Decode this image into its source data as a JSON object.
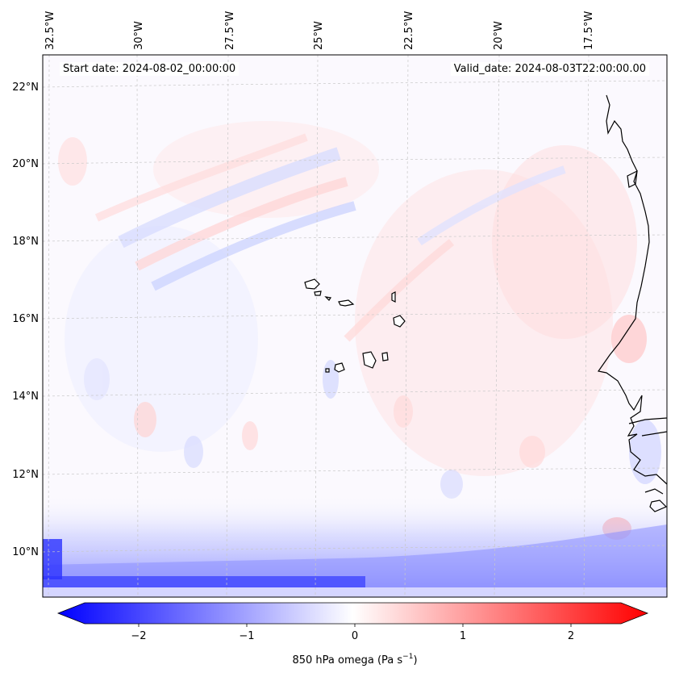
{
  "header": {
    "start_label": "Start date: 2024-08-02_00:00:00",
    "valid_label": "Valid_date: 2024-08-03T22:00:00.00"
  },
  "axes": {
    "lon_ticks": [
      "32.5°W",
      "30°W",
      "27.5°W",
      "25°W",
      "22.5°W",
      "20°W",
      "17.5°W"
    ],
    "lat_ticks": [
      "22°N",
      "20°N",
      "18°N",
      "16°N",
      "14°N",
      "12°N",
      "10°N"
    ]
  },
  "colorbar": {
    "ticks": [
      "−2",
      "−1",
      "0",
      "1",
      "2"
    ],
    "label_prefix": "850 hPa omega (Pa s",
    "label_exp": "−1",
    "label_suffix": ")",
    "min": -2.6,
    "max": 2.6,
    "color_neg": "#0000ff",
    "color_mid": "#ffffff",
    "color_pos": "#ff0000"
  },
  "map": {
    "field": "850 hPa omega",
    "coastline_color": "#000000",
    "grid_color": "#c8c8c8"
  }
}
